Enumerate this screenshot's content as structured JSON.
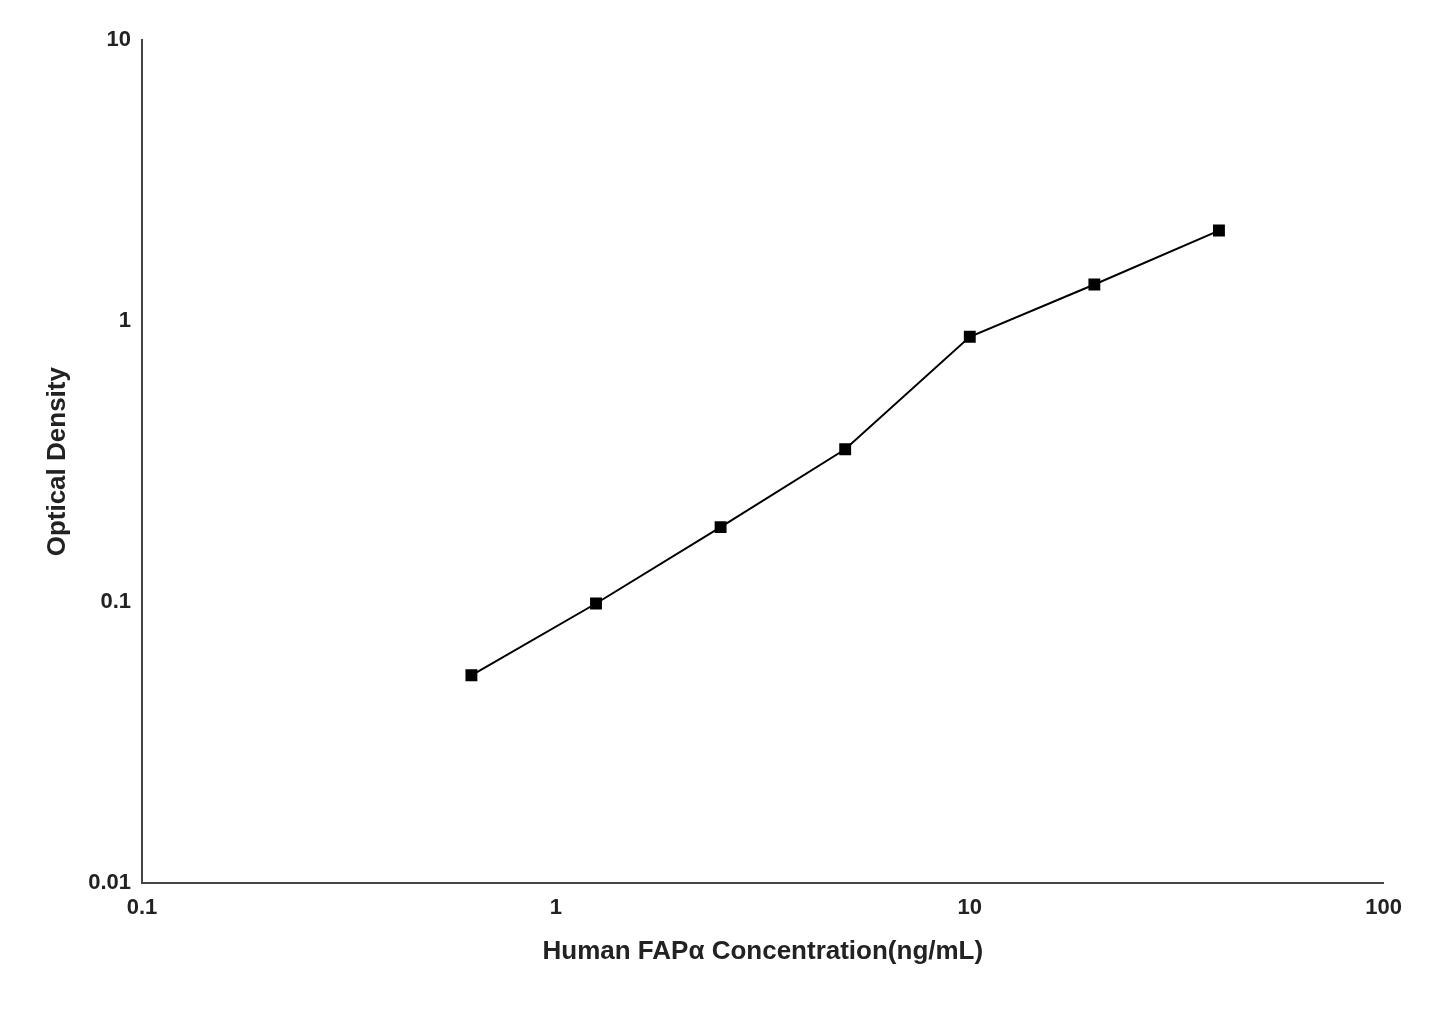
{
  "chart_data": {
    "type": "line",
    "x": [
      0.625,
      1.25,
      2.5,
      5.0,
      10.0,
      20.0,
      40.0
    ],
    "values": [
      0.055,
      0.099,
      0.185,
      0.35,
      0.88,
      1.35,
      2.1
    ],
    "xlabel": "Human FAPα Concentration(ng/mL)",
    "ylabel": "Optical Density",
    "xlim": [
      0.1,
      100
    ],
    "ylim": [
      0.01,
      10
    ],
    "xticks": [
      0.1,
      1,
      10,
      100
    ],
    "yticks": [
      0.01,
      0.1,
      1,
      10
    ],
    "log": true,
    "grid": false,
    "color": "#000000",
    "marker": "square"
  }
}
